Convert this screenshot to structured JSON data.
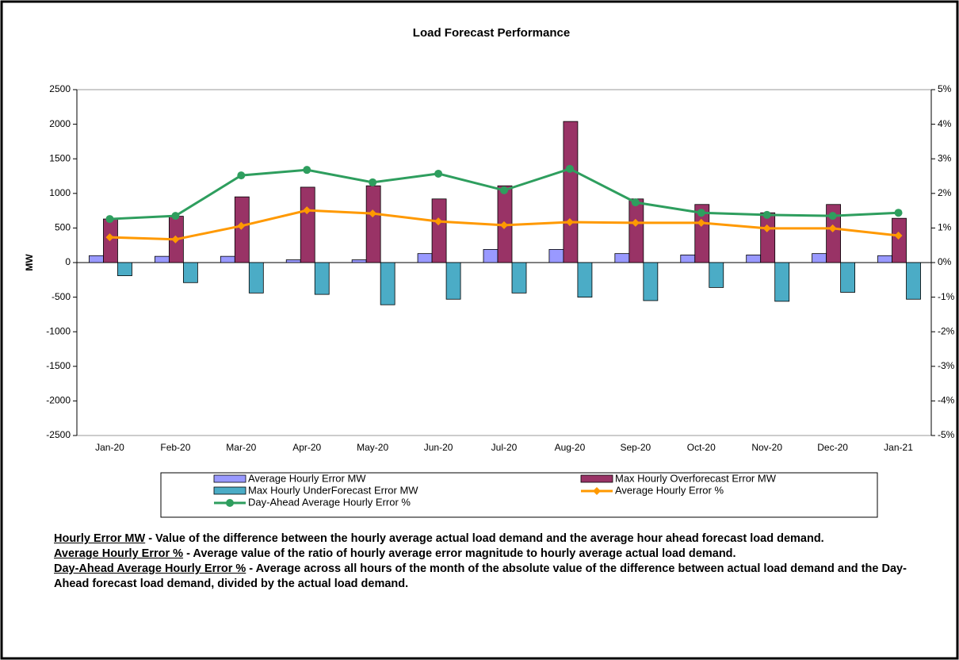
{
  "chart_data": {
    "type": "bar",
    "title": "Load Forecast Performance",
    "ylabel": "MW",
    "categories": [
      "Jan-20",
      "Feb-20",
      "Mar-20",
      "Apr-20",
      "May-20",
      "Jun-20",
      "Jul-20",
      "Aug-20",
      "Sep-20",
      "Oct-20",
      "Nov-20",
      "Dec-20",
      "Jan-21"
    ],
    "ylim": [
      -2500,
      2500
    ],
    "yticks": [
      -2500,
      -2000,
      -1500,
      -1000,
      -500,
      0,
      500,
      1000,
      1500,
      2000,
      2500
    ],
    "y2lim": [
      -5,
      5
    ],
    "y2ticks": [
      {
        "value": -5,
        "label": "-5%"
      },
      {
        "value": -4,
        "label": "-4%"
      },
      {
        "value": -3,
        "label": "-3%"
      },
      {
        "value": -2,
        "label": "-2%"
      },
      {
        "value": -1,
        "label": "-1%"
      },
      {
        "value": 0,
        "label": "0%"
      },
      {
        "value": 1,
        "label": "1%"
      },
      {
        "value": 2,
        "label": "2%"
      },
      {
        "value": 3,
        "label": "3%"
      },
      {
        "value": 4,
        "label": "4%"
      },
      {
        "value": 5,
        "label": "5%"
      }
    ],
    "series": [
      {
        "name": "Average Hourly Error MW",
        "type": "bar",
        "color": "#9999ff",
        "values": [
          100,
          90,
          90,
          40,
          40,
          130,
          190,
          190,
          130,
          110,
          110,
          130,
          100
        ]
      },
      {
        "name": "Max Hourly Overforecast Error MW",
        "type": "bar",
        "color": "#993366",
        "values": [
          630,
          670,
          950,
          1090,
          1110,
          920,
          1110,
          2040,
          920,
          840,
          720,
          840,
          640
        ]
      },
      {
        "name": "Max Hourly UnderForecast Error MW",
        "type": "bar",
        "color": "#4bacc6",
        "values": [
          -190,
          -290,
          -440,
          -460,
          -610,
          -530,
          -440,
          -500,
          -550,
          -360,
          -560,
          -430,
          -530
        ]
      },
      {
        "name": "Average Hourly Error %",
        "type": "line",
        "marker": "diamond",
        "axis": "y2",
        "color": "#ff9900",
        "values": [
          0.73,
          0.67,
          1.06,
          1.51,
          1.42,
          1.19,
          1.08,
          1.17,
          1.15,
          1.15,
          0.99,
          0.99,
          0.78
        ]
      },
      {
        "name": "Day-Ahead Average Hourly Error %",
        "type": "line",
        "marker": "circle",
        "axis": "y2",
        "color": "#2e9e5e",
        "values": [
          1.26,
          1.35,
          2.52,
          2.68,
          2.32,
          2.57,
          2.09,
          2.71,
          1.74,
          1.44,
          1.38,
          1.35,
          1.44
        ]
      }
    ]
  },
  "notes": [
    {
      "term": "Hourly Error MW",
      "text": "- Value of the difference between the hourly average actual load demand and the average hour ahead forecast load demand."
    },
    {
      "term": "Average Hourly Error %",
      "text": "- Average value of the ratio of hourly average error magnitude to hourly average actual load demand."
    },
    {
      "term": "Day-Ahead  Average Hourly Error %",
      "text": "- Average across all hours of the month of the absolute value of the difference between actual load demand and the Day-Ahead forecast load demand, divided by the actual load demand."
    }
  ]
}
